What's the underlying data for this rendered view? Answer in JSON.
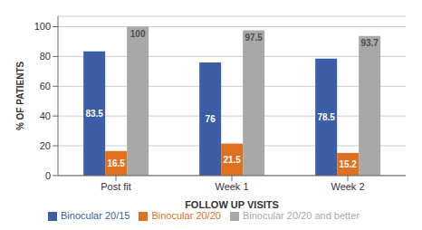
{
  "chart_data": {
    "type": "bar",
    "categories": [
      "Post fit",
      "Week 1",
      "Week 2"
    ],
    "series": [
      {
        "name": "Binocular 20/15",
        "color": "#3B5EA6",
        "values": [
          83.5,
          76,
          78.5
        ]
      },
      {
        "name": "Binocular 20/20",
        "color": "#E07020",
        "values": [
          16.5,
          21.5,
          15.2
        ]
      },
      {
        "name": "Binocular 20/20 and better",
        "color": "#A8A8A8",
        "values": [
          100,
          97.5,
          93.7
        ]
      }
    ],
    "xlabel": "FOLLOW UP VISITS",
    "ylabel": "% OF PATIENTS",
    "ylim": [
      0,
      107
    ],
    "yticks": [
      0,
      20,
      40,
      60,
      80,
      100
    ],
    "grid": true,
    "legend": "bottom",
    "data_labels": true
  }
}
